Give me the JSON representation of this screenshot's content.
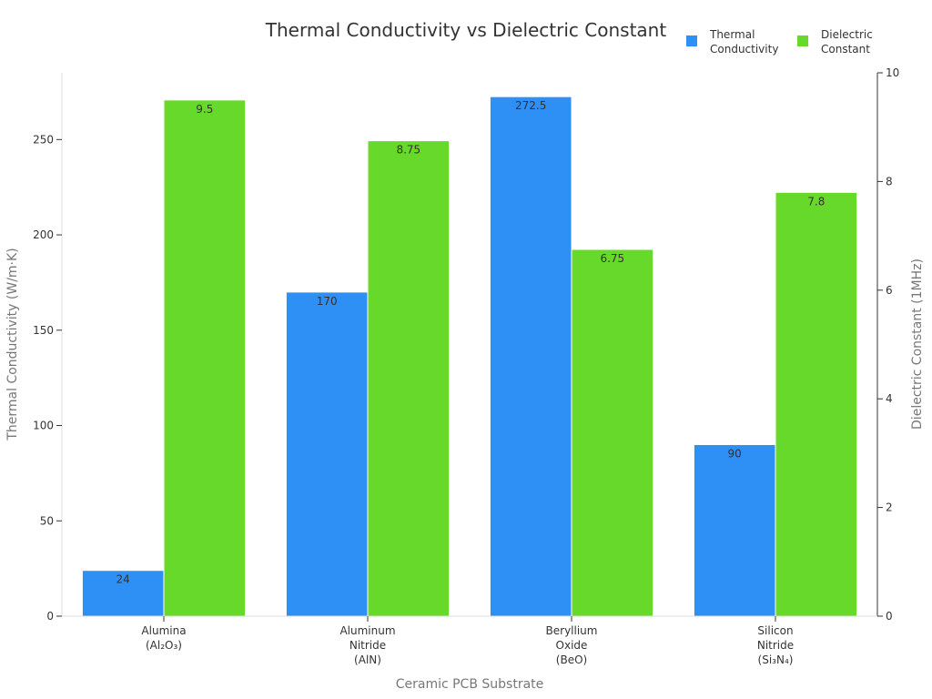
{
  "chart_data": {
    "type": "bar",
    "title": "Thermal Conductivity vs Dielectric Constant",
    "xlabel": "Ceramic PCB Substrate",
    "ylabel_left": "Thermal Conductivity (W/m·K)",
    "ylabel_right": "Dielectric Constant (1MHz)",
    "categories": [
      [
        "Alumina",
        "(Al₂O₃)"
      ],
      [
        "Aluminum",
        "Nitride",
        "(AlN)"
      ],
      [
        "Beryllium",
        "Oxide",
        "(BeO)"
      ],
      [
        "Silicon",
        "Nitride",
        "(Si₃N₄)"
      ]
    ],
    "series": [
      {
        "name": "Thermal Conductivity",
        "legend_lines": [
          "Thermal",
          "Conductivity"
        ],
        "axis": "left",
        "color": "#2e8ff5",
        "values": [
          24,
          170,
          272.5,
          90
        ],
        "labels": [
          "24",
          "170",
          "272.5",
          "90"
        ]
      },
      {
        "name": "Dielectric Constant",
        "legend_lines": [
          "Dielectric",
          "Constant"
        ],
        "axis": "right",
        "color": "#66d92a",
        "values": [
          9.5,
          8.75,
          6.75,
          7.8
        ],
        "labels": [
          "9.5",
          "8.75",
          "6.75",
          "7.8"
        ]
      }
    ],
    "ylim_left": [
      0,
      285
    ],
    "yticks_left": [
      0,
      50,
      100,
      150,
      200,
      250
    ],
    "ylim_right": [
      0,
      10
    ],
    "yticks_right": [
      0,
      2,
      4,
      6,
      8,
      10
    ],
    "legend_position": "top-right",
    "grid": false
  }
}
